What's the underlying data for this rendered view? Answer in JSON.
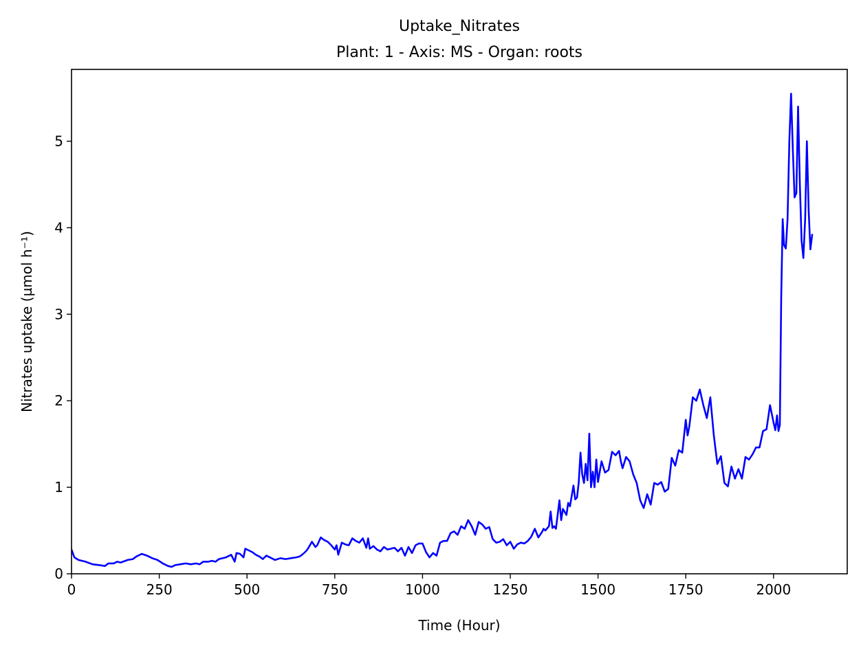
{
  "chart_data": {
    "type": "line",
    "title": "Uptake_Nitrates",
    "subtitle": "Plant: 1 - Axis: MS - Organ: roots",
    "xlabel": "Time (Hour)",
    "ylabel": "Nitrates uptake (µmol h⁻¹)",
    "xlim": [
      0,
      2210
    ],
    "ylim": [
      0,
      5.83
    ],
    "xticks": [
      0,
      250,
      500,
      750,
      1000,
      1250,
      1500,
      1750,
      2000
    ],
    "xtick_labels": [
      "0",
      "250",
      "500",
      "750",
      "1000",
      "1250",
      "1500",
      "1750",
      "2000"
    ],
    "yticks": [
      0,
      1,
      2,
      3,
      4,
      5
    ],
    "ytick_labels": [
      "0",
      "1",
      "2",
      "3",
      "4",
      "5"
    ],
    "grid": false,
    "series": [
      {
        "color": "#0000ff",
        "x": [
          0,
          8,
          20,
          40,
          60,
          80,
          95,
          105,
          120,
          130,
          140,
          160,
          175,
          185,
          200,
          215,
          230,
          245,
          260,
          275,
          285,
          295,
          310,
          325,
          340,
          355,
          365,
          375,
          390,
          400,
          410,
          420,
          440,
          455,
          465,
          470,
          480,
          490,
          495,
          505,
          515,
          525,
          535,
          545,
          555,
          565,
          580,
          595,
          610,
          625,
          640,
          650,
          660,
          670,
          675,
          685,
          695,
          700,
          710,
          720,
          730,
          740,
          750,
          755,
          760,
          770,
          780,
          790,
          800,
          810,
          820,
          830,
          840,
          845,
          850,
          860,
          870,
          880,
          890,
          900,
          910,
          920,
          930,
          940,
          950,
          960,
          970,
          980,
          990,
          1000,
          1010,
          1020,
          1030,
          1040,
          1050,
          1060,
          1070,
          1080,
          1090,
          1100,
          1110,
          1120,
          1130,
          1140,
          1150,
          1160,
          1170,
          1180,
          1190,
          1200,
          1210,
          1220,
          1230,
          1240,
          1250,
          1260,
          1270,
          1280,
          1290,
          1300,
          1310,
          1320,
          1330,
          1340,
          1345,
          1350,
          1360,
          1365,
          1370,
          1375,
          1380,
          1390,
          1395,
          1400,
          1410,
          1415,
          1420,
          1430,
          1435,
          1440,
          1445,
          1450,
          1455,
          1460,
          1465,
          1470,
          1475,
          1480,
          1485,
          1490,
          1495,
          1500,
          1510,
          1520,
          1530,
          1540,
          1550,
          1560,
          1565,
          1570,
          1580,
          1590,
          1600,
          1610,
          1620,
          1630,
          1640,
          1650,
          1660,
          1670,
          1680,
          1690,
          1700,
          1710,
          1720,
          1730,
          1740,
          1750,
          1755,
          1760,
          1770,
          1780,
          1790,
          1800,
          1810,
          1820,
          1830,
          1840,
          1850,
          1860,
          1870,
          1880,
          1890,
          1900,
          1910,
          1920,
          1930,
          1940,
          1950,
          1960,
          1970,
          1980,
          1990,
          2000,
          2005,
          2010,
          2014,
          2018,
          2022,
          2026,
          2030,
          2035,
          2040,
          2045,
          2050,
          2055,
          2060,
          2065,
          2070,
          2075,
          2080,
          2085,
          2090,
          2095,
          2100,
          2105,
          2110
        ],
        "y": [
          0.28,
          0.19,
          0.16,
          0.14,
          0.11,
          0.1,
          0.09,
          0.12,
          0.12,
          0.14,
          0.13,
          0.16,
          0.17,
          0.2,
          0.23,
          0.21,
          0.18,
          0.16,
          0.12,
          0.09,
          0.08,
          0.1,
          0.11,
          0.12,
          0.11,
          0.12,
          0.11,
          0.14,
          0.14,
          0.15,
          0.14,
          0.17,
          0.19,
          0.22,
          0.14,
          0.24,
          0.23,
          0.19,
          0.29,
          0.27,
          0.25,
          0.22,
          0.2,
          0.17,
          0.21,
          0.19,
          0.16,
          0.18,
          0.17,
          0.18,
          0.19,
          0.2,
          0.23,
          0.27,
          0.3,
          0.37,
          0.31,
          0.33,
          0.42,
          0.39,
          0.37,
          0.33,
          0.28,
          0.33,
          0.22,
          0.36,
          0.34,
          0.33,
          0.41,
          0.38,
          0.36,
          0.41,
          0.3,
          0.41,
          0.29,
          0.32,
          0.28,
          0.26,
          0.31,
          0.28,
          0.29,
          0.3,
          0.26,
          0.3,
          0.21,
          0.31,
          0.24,
          0.33,
          0.35,
          0.35,
          0.25,
          0.19,
          0.24,
          0.21,
          0.36,
          0.38,
          0.38,
          0.47,
          0.49,
          0.45,
          0.55,
          0.52,
          0.62,
          0.55,
          0.45,
          0.6,
          0.57,
          0.52,
          0.54,
          0.4,
          0.36,
          0.37,
          0.4,
          0.33,
          0.37,
          0.29,
          0.34,
          0.36,
          0.35,
          0.38,
          0.43,
          0.52,
          0.42,
          0.48,
          0.52,
          0.5,
          0.55,
          0.72,
          0.53,
          0.55,
          0.52,
          0.85,
          0.62,
          0.75,
          0.68,
          0.82,
          0.78,
          1.02,
          0.86,
          0.88,
          1.05,
          1.4,
          1.15,
          1.05,
          1.27,
          1.08,
          1.62,
          1.0,
          1.18,
          1.0,
          1.32,
          1.06,
          1.3,
          1.17,
          1.2,
          1.41,
          1.37,
          1.42,
          1.3,
          1.22,
          1.35,
          1.3,
          1.15,
          1.05,
          0.85,
          0.76,
          0.92,
          0.8,
          1.05,
          1.03,
          1.06,
          0.95,
          0.98,
          1.34,
          1.25,
          1.43,
          1.4,
          1.78,
          1.6,
          1.7,
          2.04,
          2.0,
          2.13,
          1.95,
          1.8,
          2.04,
          1.6,
          1.27,
          1.36,
          1.05,
          1.01,
          1.24,
          1.1,
          1.21,
          1.1,
          1.35,
          1.32,
          1.38,
          1.46,
          1.46,
          1.65,
          1.67,
          1.95,
          1.75,
          1.66,
          1.83,
          1.65,
          1.72,
          3.2,
          4.1,
          3.8,
          3.76,
          4.1,
          5.0,
          5.55,
          4.9,
          4.35,
          4.4,
          5.4,
          4.5,
          3.85,
          3.65,
          4.1,
          5.0,
          4.2,
          3.75,
          3.92
        ]
      }
    ]
  }
}
